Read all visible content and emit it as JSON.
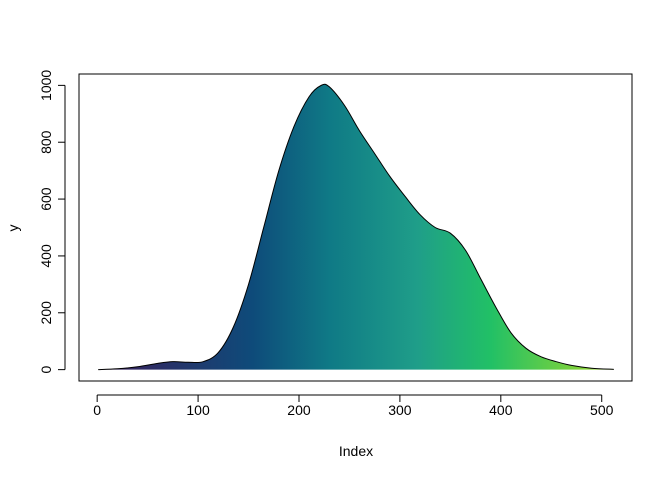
{
  "chart_data": {
    "type": "area",
    "xlabel": "Index",
    "ylabel": "y",
    "xlim": [
      -18,
      530
    ],
    "ylim": [
      -40,
      1040
    ],
    "xticks": [
      0,
      100,
      200,
      300,
      400,
      500
    ],
    "xtick_labels": [
      "0",
      "100",
      "200",
      "300",
      "400",
      "500"
    ],
    "yticks": [
      0,
      200,
      400,
      600,
      800,
      1000
    ],
    "ytick_labels": [
      "0",
      "200",
      "400",
      "600",
      "800",
      "1000"
    ],
    "grid": false,
    "fill_colors": [
      "#3b1d5a",
      "#0e4b7a",
      "#0f7a86",
      "#1f9e89",
      "#21c066",
      "#a2d92a"
    ],
    "outline_color": "#000000",
    "series": [
      {
        "x": [
          1,
          20,
          40,
          60,
          75,
          90,
          105,
          120,
          135,
          150,
          165,
          180,
          195,
          210,
          222,
          230,
          245,
          260,
          275,
          290,
          305,
          320,
          335,
          350,
          365,
          380,
          395,
          410,
          425,
          440,
          455,
          470,
          490,
          512
        ],
        "y": [
          0,
          3,
          10,
          22,
          28,
          26,
          28,
          60,
          150,
          300,
          500,
          700,
          855,
          960,
          1000,
          995,
          930,
          840,
          760,
          680,
          610,
          545,
          500,
          480,
          420,
          320,
          220,
          130,
          75,
          45,
          28,
          15,
          5,
          1
        ]
      }
    ]
  }
}
